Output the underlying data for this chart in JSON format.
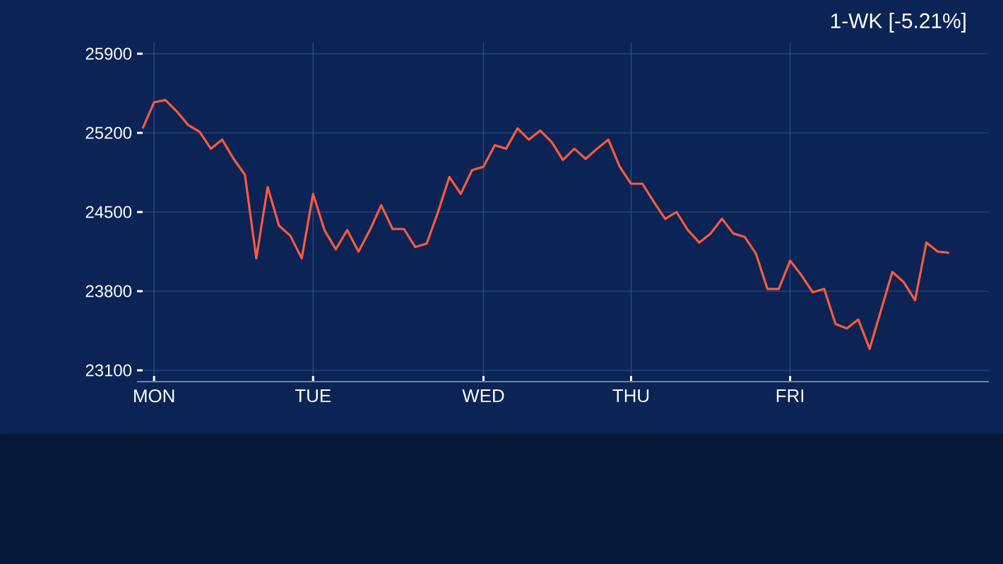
{
  "chart_data": {
    "type": "line",
    "annotations": [
      "1-WK   [-5.21%]"
    ],
    "categories": [
      null,
      "MON",
      null,
      null,
      null,
      null,
      null,
      null,
      null,
      null,
      null,
      null,
      null,
      null,
      null,
      "TUE",
      null,
      null,
      null,
      null,
      null,
      null,
      null,
      null,
      null,
      null,
      null,
      null,
      null,
      null,
      "WED",
      null,
      null,
      null,
      null,
      null,
      null,
      null,
      null,
      null,
      null,
      null,
      null,
      "THU",
      null,
      null,
      null,
      null,
      null,
      null,
      null,
      null,
      null,
      null,
      null,
      null,
      null,
      "FRI",
      null,
      null,
      null,
      null,
      null,
      null,
      null,
      null,
      null,
      null,
      null,
      null,
      null,
      null
    ],
    "values": [
      25240,
      25470,
      25490,
      25390,
      25270,
      25210,
      25060,
      25140,
      24970,
      24830,
      24090,
      24720,
      24380,
      24290,
      24090,
      24660,
      24340,
      24170,
      24340,
      24150,
      24340,
      24560,
      24350,
      24350,
      24190,
      24220,
      24500,
      24810,
      24660,
      24870,
      24900,
      25090,
      25060,
      25240,
      25140,
      25220,
      25120,
      24960,
      25060,
      24970,
      25060,
      25140,
      24900,
      24750,
      24750,
      24590,
      24440,
      24500,
      24340,
      24230,
      24310,
      24440,
      24310,
      24280,
      24130,
      23820,
      23820,
      24070,
      23940,
      23790,
      23820,
      23510,
      23470,
      23550,
      23290,
      23630,
      23970,
      23880,
      23720,
      24230,
      24150,
      24140
    ],
    "color": "#ff5a3c",
    "ylim": [
      23000,
      26000
    ],
    "yticks": [
      23100,
      23800,
      24500,
      25200,
      25900
    ],
    "grid": true
  }
}
